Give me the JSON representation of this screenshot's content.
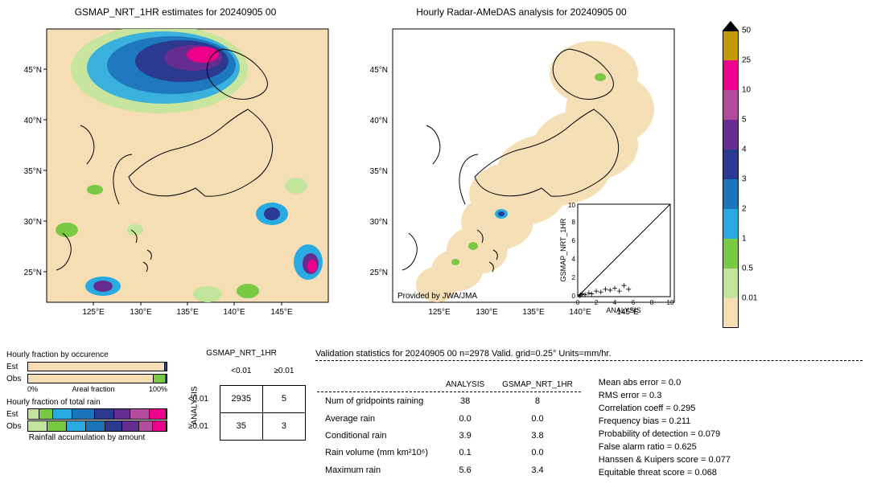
{
  "panelA": {
    "title": "GSMAP_NRT_1HR estimates for 20240905 00",
    "xlim": [
      120,
      150
    ],
    "ylim": [
      22,
      49
    ],
    "xticks": [
      125,
      130,
      135,
      140,
      145
    ],
    "yticks": [
      25,
      30,
      35,
      40,
      45
    ],
    "xtick_labels": [
      "125°E",
      "130°E",
      "135°E",
      "140°E",
      "145°E"
    ],
    "ytick_labels": [
      "25°N",
      "30°N",
      "35°N",
      "40°N",
      "45°N"
    ],
    "background_color": "#f5deb3",
    "coastline_color": "#000000"
  },
  "panelB": {
    "title": "Hourly Radar-AMeDAS analysis for 20240905 00",
    "credit": "Provided by JWA/JMA",
    "xlim": [
      120,
      150
    ],
    "ylim": [
      22,
      49
    ],
    "xticks": [
      125,
      130,
      135,
      140,
      145
    ],
    "yticks": [
      25,
      30,
      35,
      40,
      45
    ],
    "inset": {
      "xlabel": "ANALYSIS",
      "ylabel": "GSMAP_NRT_1HR",
      "xlim": [
        0,
        10
      ],
      "ylim": [
        0,
        10
      ],
      "ticks": [
        0,
        2,
        4,
        6,
        8,
        10
      ],
      "points": [
        [
          0.2,
          0.1
        ],
        [
          0.3,
          0.2
        ],
        [
          0.5,
          0.3
        ],
        [
          0.8,
          0.2
        ],
        [
          1.2,
          0.4
        ],
        [
          1.5,
          0.3
        ],
        [
          2.0,
          0.6
        ],
        [
          2.5,
          0.5
        ],
        [
          3.0,
          0.8
        ],
        [
          3.5,
          0.7
        ],
        [
          4.0,
          0.9
        ],
        [
          4.5,
          0.6
        ],
        [
          5.0,
          1.2
        ],
        [
          5.5,
          0.8
        ]
      ]
    }
  },
  "colorbar": {
    "levels": [
      0.01,
      0.5,
      1,
      2,
      3,
      4,
      5,
      10,
      25,
      50
    ],
    "colors": [
      "#f5deb3",
      "#c3e59b",
      "#7ac943",
      "#29abe2",
      "#1b75bb",
      "#2b3990",
      "#662d91",
      "#b44c9e",
      "#ec008c",
      "#c49a00"
    ],
    "arrow_color": "#000000",
    "extend_below_color": "#f5deb3"
  },
  "occurrence_bars": {
    "title": "Hourly fraction by occurence",
    "rows": [
      {
        "label": "Est",
        "green_pct": 2
      },
      {
        "label": "Obs",
        "green_pct": 10
      }
    ],
    "axis": {
      "left": "0%",
      "center": "Areal fraction",
      "right": "100%"
    }
  },
  "totalrain_bars": {
    "title": "Hourly fraction of total rain",
    "footer": "Rainfall accumulation by amount",
    "rows": [
      "Est",
      "Obs"
    ],
    "palette": [
      "#c3e59b",
      "#7ac943",
      "#29abe2",
      "#1b75bb",
      "#2b3990",
      "#662d91",
      "#b44c9e",
      "#ec008c"
    ],
    "est": [
      8,
      10,
      14,
      16,
      14,
      12,
      14,
      12
    ],
    "obs": [
      14,
      14,
      14,
      14,
      12,
      12,
      10,
      10
    ]
  },
  "contingency": {
    "col_title": "GSMAP_NRT_1HR",
    "row_title": "ANALYSIS",
    "col_headers": [
      "<0.01",
      "≥0.01"
    ],
    "row_headers": [
      "<0.01",
      "≥0.01"
    ],
    "cells": [
      [
        2935,
        5
      ],
      [
        35,
        3
      ]
    ]
  },
  "stats": {
    "title": "Validation statistics for 20240905 00  n=2978 Valid. grid=0.25°  Units=mm/hr.",
    "columns": [
      "",
      "ANALYSIS",
      "GSMAP_NRT_1HR"
    ],
    "rows": [
      {
        "label": "Num of gridpoints raining",
        "a": "38",
        "b": "8"
      },
      {
        "label": "Average rain",
        "a": "0.0",
        "b": "0.0"
      },
      {
        "label": "Conditional rain",
        "a": "3.9",
        "b": "3.8"
      },
      {
        "label": "Rain volume (mm km²10⁶)",
        "a": "0.1",
        "b": "0.0"
      },
      {
        "label": "Maximum rain",
        "a": "5.6",
        "b": "3.4"
      }
    ],
    "metrics": [
      {
        "label": "Mean abs error",
        "v": "0.0"
      },
      {
        "label": "RMS error",
        "v": "0.3"
      },
      {
        "label": "Correlation coeff",
        "v": "0.295"
      },
      {
        "label": "Frequency bias",
        "v": "0.211"
      },
      {
        "label": "Probability of detection",
        "v": "0.079"
      },
      {
        "label": "False alarm ratio",
        "v": "0.625"
      },
      {
        "label": "Hanssen & Kuipers score",
        "v": "0.077"
      },
      {
        "label": "Equitable threat score",
        "v": "0.068"
      }
    ]
  }
}
